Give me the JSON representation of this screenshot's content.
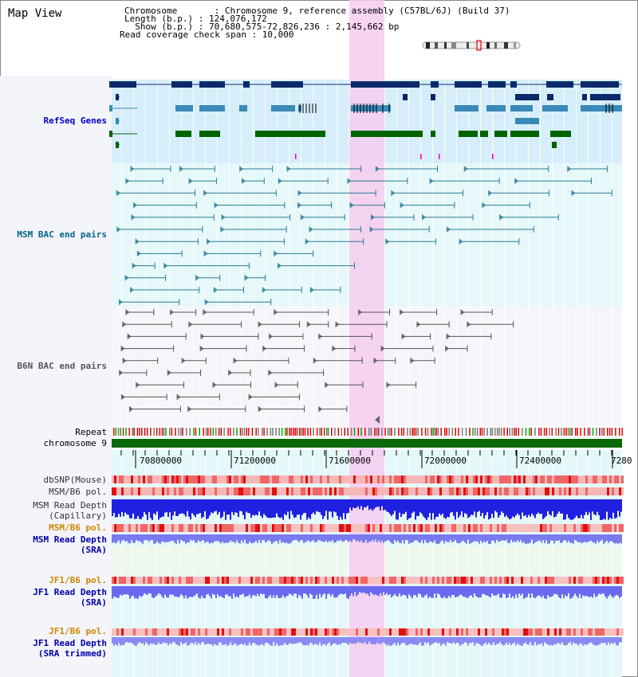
{
  "header": {
    "title": "Map View",
    "chromosome": "Chromosome       : Chromosome 9, reference assembly (C57BL/6J) (Build 37)",
    "length": "Length (b.p.) : 124,076,172",
    "show": "  Show (b.p.) : 70,680,575-72,826,236 : 2,145,662 bp",
    "coverage": "Read coverage check span : 10,000"
  },
  "tracks": {
    "refseq": "RefSeq Genes",
    "msm_bac": "MSM BAC end pairs",
    "b6n_bac": "B6N BAC end pairs",
    "repeat": "Repeat",
    "chromosome": "chromosome 9",
    "dbsnp": "dbSNP(Mouse)",
    "msm_b6_pol_1": "MSM/B6 pol.",
    "msm_read_depth_cap_1": "MSM Read Depth",
    "msm_read_depth_cap_2": "(Capillary)",
    "msm_b6_pol_2": "MSM/B6 pol.",
    "msm_read_depth_sra_1": "MSM Read Depth",
    "msm_read_depth_sra_2": "(SRA)",
    "jf1_pol_1": "JF1/B6 pol.",
    "jf1_read_depth_1": "JF1 Read Depth",
    "jf1_read_depth_2": "(SRA)",
    "jf1_pol_2": "JF1/B6 pol.",
    "jf1_trim_1": "JF1 Read Depth",
    "jf1_trim_2": "(SRA trimmed)"
  },
  "axis": {
    "ticks": [
      "70800000",
      "71200000",
      "71600000",
      "72000000",
      "72400000",
      "7280"
    ]
  },
  "colors": {
    "refseq_label": "#0000cc",
    "msm_label": "#006688",
    "b6n_label": "#555555",
    "pol_label": "#cc8800",
    "depth_label": "#0000aa",
    "gene_dark": "#0a2a6a",
    "gene_mid": "#3a8ab8",
    "gene_green": "#006400",
    "highlight": "#f6cdee"
  }
}
